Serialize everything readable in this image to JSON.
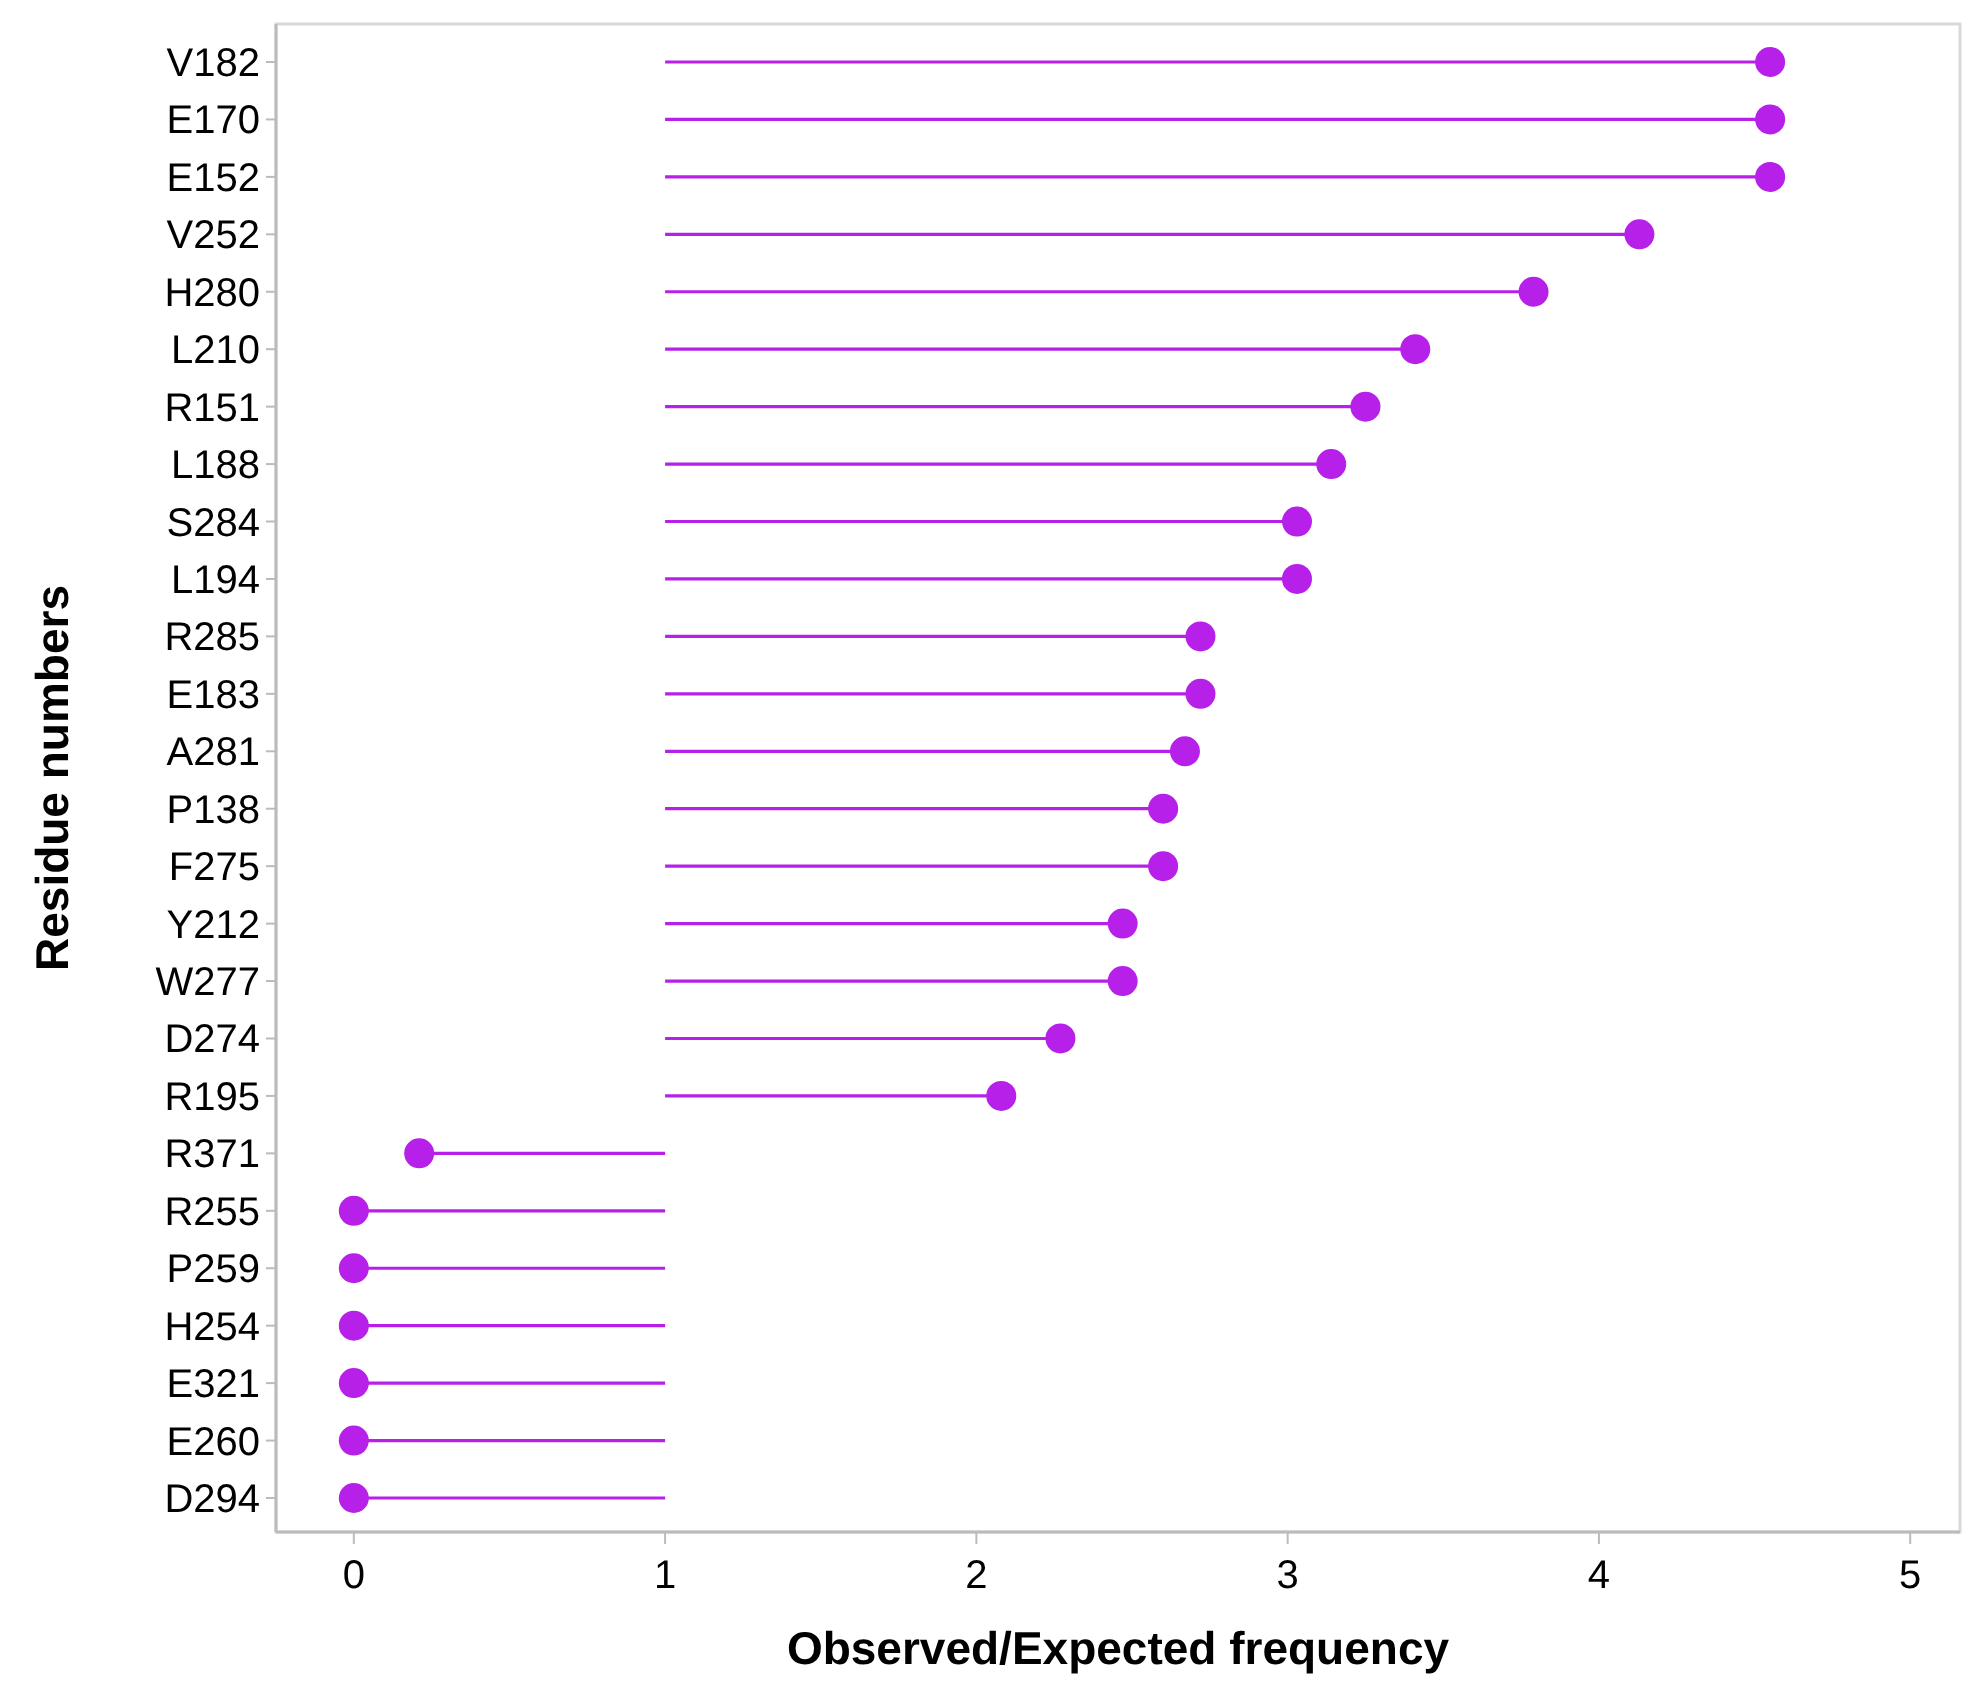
{
  "chart_data": {
    "type": "lollipop",
    "orientation": "horizontal",
    "xlabel": "Observed/Expected frequency",
    "ylabel": "Residue numbers",
    "categories": [
      "V182",
      "E170",
      "E152",
      "V252",
      "H280",
      "L210",
      "R151",
      "L188",
      "S284",
      "L194",
      "R285",
      "E183",
      "A281",
      "P138",
      "F275",
      "Y212",
      "W277",
      "D274",
      "R195",
      "R371",
      "R255",
      "P259",
      "H254",
      "E321",
      "E260",
      "D294"
    ],
    "errors": [
      [
        1,
        4.55
      ],
      [
        1,
        4.55
      ],
      [
        1,
        4.55
      ],
      [
        1,
        4.13
      ],
      [
        1,
        3.79
      ],
      [
        1,
        3.41
      ],
      [
        1,
        3.25
      ],
      [
        1,
        3.14
      ],
      [
        1,
        3.03
      ],
      [
        1,
        3.03
      ],
      [
        1,
        2.72
      ],
      [
        1,
        2.72
      ],
      [
        1,
        2.67
      ],
      [
        1,
        2.6
      ],
      [
        1,
        2.6
      ],
      [
        1,
        2.47
      ],
      [
        1,
        2.47
      ],
      [
        1,
        2.27
      ],
      [
        1,
        2.08
      ],
      [
        0.21,
        1
      ],
      [
        0,
        1
      ],
      [
        0,
        1
      ],
      [
        0,
        1
      ],
      [
        0,
        1
      ],
      [
        0,
        1
      ],
      [
        0,
        1
      ]
    ],
    "values": [
      4.55,
      4.55,
      4.55,
      4.13,
      3.79,
      3.41,
      3.25,
      3.14,
      3.03,
      3.03,
      2.72,
      2.72,
      2.67,
      2.6,
      2.6,
      2.47,
      2.47,
      2.27,
      2.08,
      0.21,
      0,
      0,
      0,
      0,
      0,
      0
    ],
    "color": "#b620e8",
    "marker": "circle",
    "grid": false,
    "xlim": [
      -0.25,
      5.16
    ],
    "xticks": [
      0,
      1,
      2,
      3,
      4,
      5
    ]
  }
}
